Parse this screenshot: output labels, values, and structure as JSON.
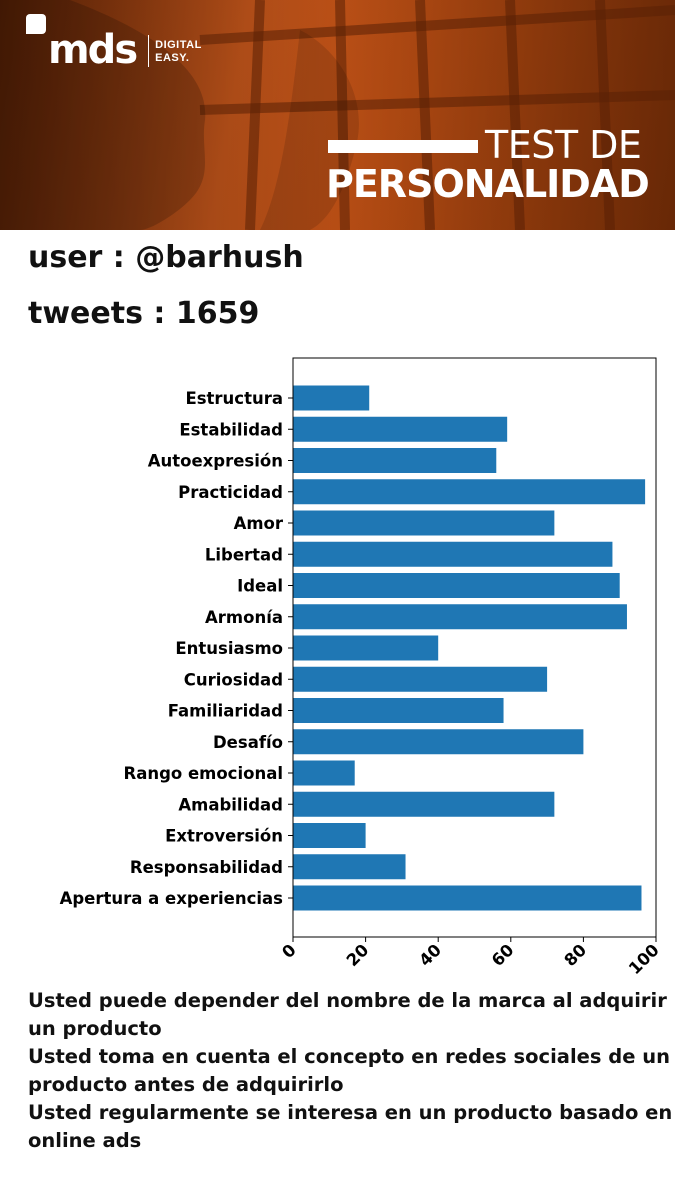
{
  "header": {
    "logo_word": "mds",
    "logo_tagline_1": "DIGITAL",
    "logo_tagline_2": "EASY.",
    "title_line1": "TEST DE",
    "title_line2": "PERSONALIDAD",
    "accent_color": "#c0541a"
  },
  "user_line": "user : @barhush",
  "tweets_line": "tweets : 1659",
  "chart_data": {
    "type": "bar",
    "orientation": "horizontal",
    "categories": [
      "Estructura",
      "Estabilidad",
      "Autoexpresión",
      "Practicidad",
      "Amor",
      "Libertad",
      "Ideal",
      "Armonía",
      "Entusiasmo",
      "Curiosidad",
      "Familiaridad",
      "Desafío",
      "Rango emocional",
      "Amabilidad",
      "Extroversión",
      "Responsabilidad",
      "Apertura a experiencias"
    ],
    "values": [
      21,
      59,
      56,
      97,
      72,
      88,
      90,
      92,
      40,
      70,
      58,
      80,
      17,
      72,
      20,
      31,
      96
    ],
    "xlim": [
      0,
      100
    ],
    "xticks": [
      "0",
      "20",
      "40",
      "60",
      "80",
      "100"
    ],
    "bar_color": "#1f77b4",
    "grid": false
  },
  "messages": [
    "Usted puede depender del nombre de la marca al adquirir un producto",
    "Usted toma en cuenta el concepto en redes sociales de un producto antes de adquirirlo",
    "Usted regularmente se interesa en un producto basado en online ads"
  ]
}
